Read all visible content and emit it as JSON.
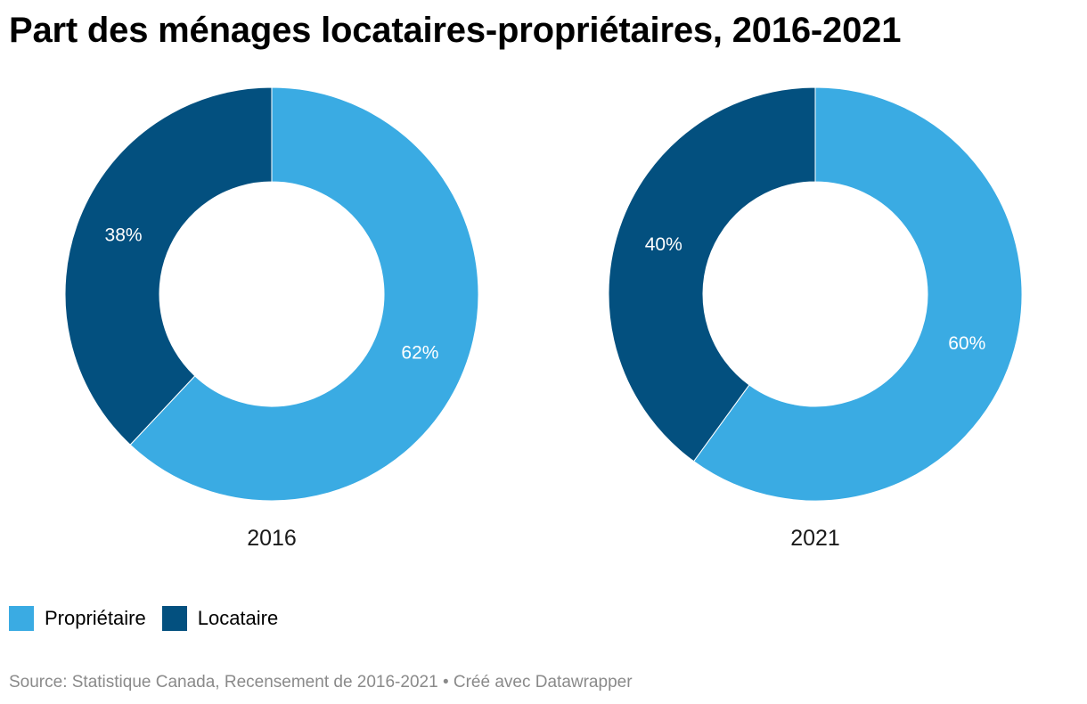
{
  "title": "Part des ménages locataires-propriétaires, 2016-2021",
  "chart_data": {
    "type": "pie",
    "variant": "donut",
    "title": "Part des ménages locataires-propriétaires, 2016-2021",
    "series_names": [
      "Propriétaire",
      "Locataire"
    ],
    "colors": {
      "Propriétaire": "#3aabe3",
      "Locataire": "#03507f"
    },
    "charts": [
      {
        "label": "2016",
        "slices": [
          {
            "name": "Propriétaire",
            "value": 62,
            "label": "62%"
          },
          {
            "name": "Locataire",
            "value": 38,
            "label": "38%"
          }
        ]
      },
      {
        "label": "2021",
        "slices": [
          {
            "name": "Propriétaire",
            "value": 60,
            "label": "60%"
          },
          {
            "name": "Locataire",
            "value": 40,
            "label": "40%"
          }
        ]
      }
    ],
    "legend_position": "bottom-left"
  },
  "legend": [
    {
      "label": "Propriétaire",
      "color": "#3aabe3"
    },
    {
      "label": "Locataire",
      "color": "#03507f"
    }
  ],
  "source": {
    "text": "Source: Statistique Canada, Recensement de 2016-2021",
    "separator": "•",
    "credit": "Créé avec Datawrapper"
  }
}
